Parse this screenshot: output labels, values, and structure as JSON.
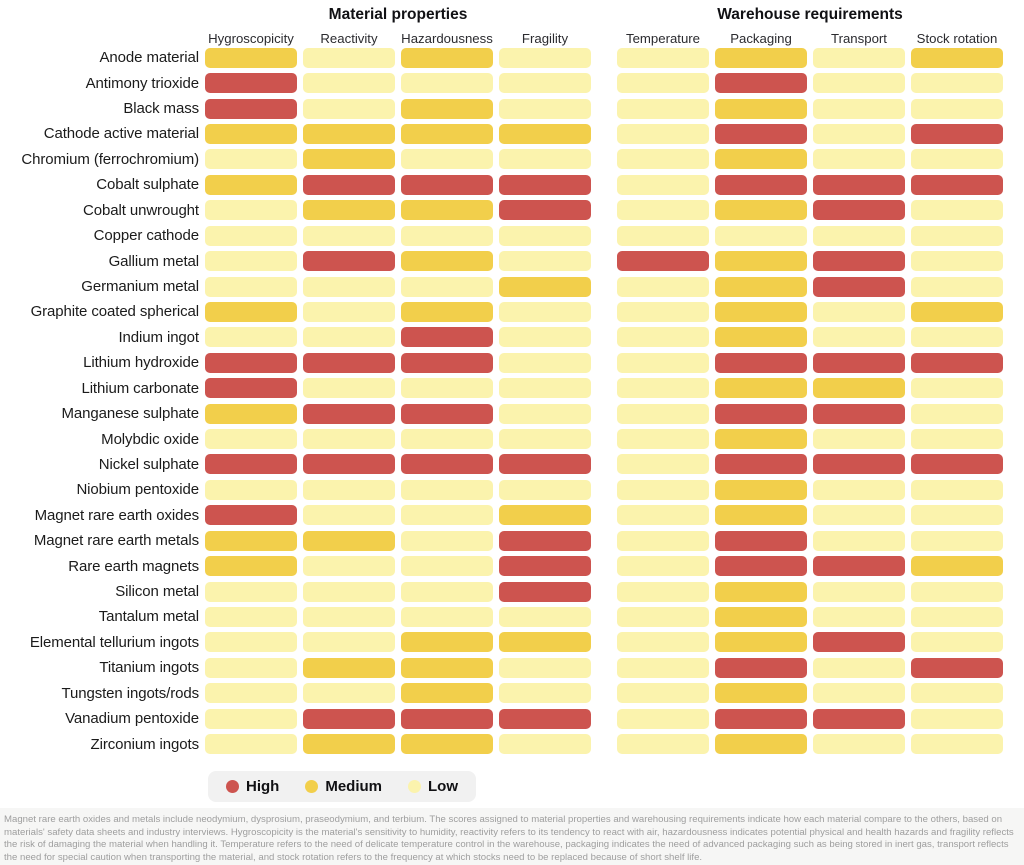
{
  "groups": [
    {
      "title": "Material properties",
      "columns": [
        "Hygroscopicity",
        "Reactivity",
        "Hazardousness",
        "Fragility"
      ]
    },
    {
      "title": "Warehouse requirements",
      "columns": [
        "Temperature",
        "Packaging",
        "Transport",
        "Stock rotation"
      ]
    }
  ],
  "legend": [
    {
      "label": "High",
      "color": "#cd544f",
      "level": "high"
    },
    {
      "label": "Medium",
      "color": "#f2cf4b",
      "level": "medium"
    },
    {
      "label": "Low",
      "color": "#fbf3ad",
      "level": "low"
    }
  ],
  "colors": {
    "high": "#cd544f",
    "medium": "#f2cf4b",
    "low": "#fbf3ad"
  },
  "footer": "Magnet rare earth oxides and metals include neodymium, dysprosium, praseodymium, and terbium. The scores assigned to material properties and warehousing requirements indicate how each material compare to the others, based on materials' safety data sheets and industry interviews. Hygroscopicity is the material's sensitivity to humidity, reactivity refers to its tendency to react with air, hazardousness indicates potential physical and health hazards and fragility reflects the risk of damaging the material when handling it. Temperature refers to the need of delicate temperature control in the warehouse, packaging indicates the need of advanced packaging such as being stored in inert gas, transport reflects the need for special caution when transporting the material, and stock rotation refers to the frequency at which stocks need to be replaced because of short shelf life.",
  "chart_data": {
    "type": "heatmap",
    "title": "",
    "column_groups": [
      "Material properties",
      "Warehouse requirements"
    ],
    "columns": [
      "Hygroscopicity",
      "Reactivity",
      "Hazardousness",
      "Fragility",
      "Temperature",
      "Packaging",
      "Transport",
      "Stock rotation"
    ],
    "legend_entries": [
      "High",
      "Medium",
      "Low"
    ],
    "legend_position": "bottom",
    "palette": {
      "high": "#cd544f",
      "medium": "#f2cf4b",
      "low": "#fbf3ad"
    },
    "rows": [
      {
        "label": "Anode material",
        "values": [
          "medium",
          "low",
          "medium",
          "low",
          "low",
          "medium",
          "low",
          "medium"
        ]
      },
      {
        "label": "Antimony trioxide",
        "values": [
          "high",
          "low",
          "low",
          "low",
          "low",
          "high",
          "low",
          "low"
        ]
      },
      {
        "label": "Black mass",
        "values": [
          "high",
          "low",
          "medium",
          "low",
          "low",
          "medium",
          "low",
          "low"
        ]
      },
      {
        "label": "Cathode active material",
        "values": [
          "medium",
          "medium",
          "medium",
          "medium",
          "low",
          "high",
          "low",
          "high"
        ]
      },
      {
        "label": "Chromium (ferrochromium)",
        "values": [
          "low",
          "medium",
          "low",
          "low",
          "low",
          "medium",
          "low",
          "low"
        ]
      },
      {
        "label": "Cobalt sulphate",
        "values": [
          "medium",
          "high",
          "high",
          "high",
          "low",
          "high",
          "high",
          "high"
        ]
      },
      {
        "label": "Cobalt unwrought",
        "values": [
          "low",
          "medium",
          "medium",
          "high",
          "low",
          "medium",
          "high",
          "low"
        ]
      },
      {
        "label": "Copper cathode",
        "values": [
          "low",
          "low",
          "low",
          "low",
          "low",
          "low",
          "low",
          "low"
        ]
      },
      {
        "label": "Gallium metal",
        "values": [
          "low",
          "high",
          "medium",
          "low",
          "high",
          "medium",
          "high",
          "low"
        ]
      },
      {
        "label": "Germanium metal",
        "values": [
          "low",
          "low",
          "low",
          "medium",
          "low",
          "medium",
          "high",
          "low"
        ]
      },
      {
        "label": "Graphite coated spherical",
        "values": [
          "medium",
          "low",
          "medium",
          "low",
          "low",
          "medium",
          "low",
          "medium"
        ]
      },
      {
        "label": "Indium ingot",
        "values": [
          "low",
          "low",
          "high",
          "low",
          "low",
          "medium",
          "low",
          "low"
        ]
      },
      {
        "label": "Lithium hydroxide",
        "values": [
          "high",
          "high",
          "high",
          "low",
          "low",
          "high",
          "high",
          "high"
        ]
      },
      {
        "label": "Lithium carbonate",
        "values": [
          "high",
          "low",
          "low",
          "low",
          "low",
          "medium",
          "medium",
          "low"
        ]
      },
      {
        "label": "Manganese sulphate",
        "values": [
          "medium",
          "high",
          "high",
          "low",
          "low",
          "high",
          "high",
          "low"
        ]
      },
      {
        "label": "Molybdic oxide",
        "values": [
          "low",
          "low",
          "low",
          "low",
          "low",
          "medium",
          "low",
          "low"
        ]
      },
      {
        "label": "Nickel sulphate",
        "values": [
          "high",
          "high",
          "high",
          "high",
          "low",
          "high",
          "high",
          "high"
        ]
      },
      {
        "label": "Niobium pentoxide",
        "values": [
          "low",
          "low",
          "low",
          "low",
          "low",
          "medium",
          "low",
          "low"
        ]
      },
      {
        "label": "Magnet rare earth oxides",
        "values": [
          "high",
          "low",
          "low",
          "medium",
          "low",
          "medium",
          "low",
          "low"
        ]
      },
      {
        "label": "Magnet rare earth metals",
        "values": [
          "medium",
          "medium",
          "low",
          "high",
          "low",
          "high",
          "low",
          "low"
        ]
      },
      {
        "label": "Rare earth magnets",
        "values": [
          "medium",
          "low",
          "low",
          "high",
          "low",
          "high",
          "high",
          "medium"
        ]
      },
      {
        "label": "Silicon metal",
        "values": [
          "low",
          "low",
          "low",
          "high",
          "low",
          "medium",
          "low",
          "low"
        ]
      },
      {
        "label": "Tantalum metal",
        "values": [
          "low",
          "low",
          "low",
          "low",
          "low",
          "medium",
          "low",
          "low"
        ]
      },
      {
        "label": "Elemental tellurium ingots",
        "values": [
          "low",
          "low",
          "medium",
          "medium",
          "low",
          "medium",
          "high",
          "low"
        ]
      },
      {
        "label": "Titanium ingots",
        "values": [
          "low",
          "medium",
          "medium",
          "low",
          "low",
          "high",
          "low",
          "high"
        ]
      },
      {
        "label": "Tungsten ingots/rods",
        "values": [
          "low",
          "low",
          "medium",
          "low",
          "low",
          "medium",
          "low",
          "low"
        ]
      },
      {
        "label": "Vanadium pentoxide",
        "values": [
          "low",
          "high",
          "high",
          "high",
          "low",
          "high",
          "high",
          "low"
        ]
      },
      {
        "label": "Zirconium ingots",
        "values": [
          "low",
          "medium",
          "medium",
          "low",
          "low",
          "medium",
          "low",
          "low"
        ]
      }
    ]
  }
}
